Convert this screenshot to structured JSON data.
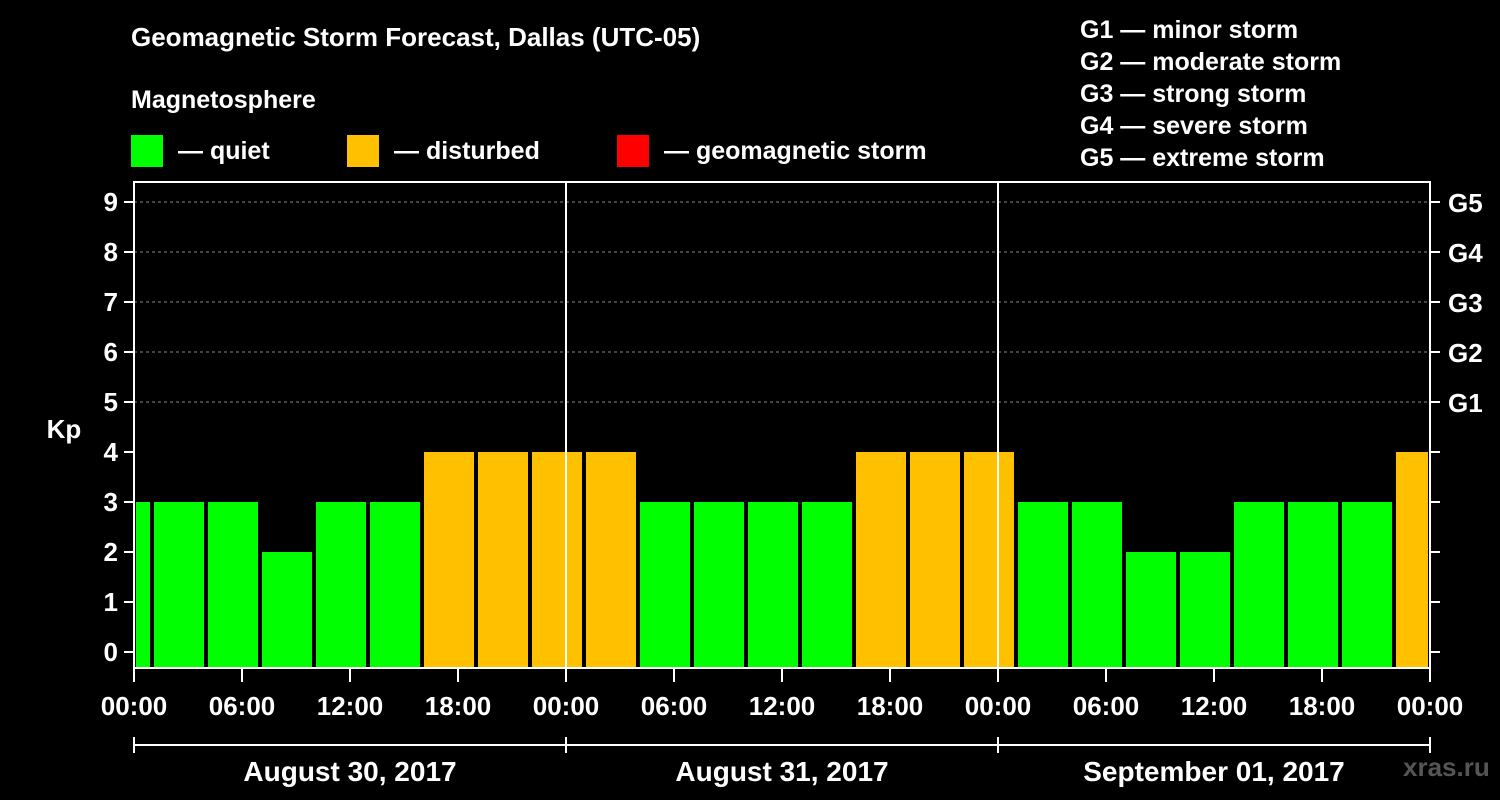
{
  "title": "Geomagnetic Storm Forecast, Dallas (UTC-05)",
  "subtitle": "Magnetosphere",
  "legend": [
    {
      "label": "— quiet",
      "color": "#00FF00"
    },
    {
      "label": "— disturbed",
      "color": "#FFC000"
    },
    {
      "label": "— geomagnetic storm",
      "color": "#FF0000"
    }
  ],
  "storm_scale": [
    "G1 — minor storm",
    "G2 — moderate storm",
    "G3 — strong storm",
    "G4 — severe storm",
    "G5 — extreme storm"
  ],
  "watermark": "xras.ru",
  "chart_data": {
    "type": "bar",
    "ylabel": "Kp",
    "ylim": [
      0,
      9
    ],
    "yticks": [
      "0",
      "1",
      "2",
      "3",
      "4",
      "5",
      "6",
      "7",
      "8",
      "9"
    ],
    "right_labels": [
      {
        "kp": 5,
        "label": "G1"
      },
      {
        "kp": 6,
        "label": "G2"
      },
      {
        "kp": 7,
        "label": "G3"
      },
      {
        "kp": 8,
        "label": "G4"
      },
      {
        "kp": 9,
        "label": "G5"
      }
    ],
    "gridlines": "dashed at Kp 5–9",
    "time_range_hours": 72,
    "x_tick_labels": [
      "00:00",
      "06:00",
      "12:00",
      "18:00",
      "00:00",
      "06:00",
      "12:00",
      "18:00",
      "00:00",
      "06:00",
      "12:00",
      "18:00",
      "00:00"
    ],
    "days": [
      "August 30, 2017",
      "August 31, 2017",
      "September 01, 2017"
    ],
    "day_boundaries_hours": [
      24,
      48
    ],
    "bars": [
      {
        "start_h": 0,
        "end_h": 1,
        "kp": 3,
        "status": "quiet"
      },
      {
        "start_h": 1,
        "end_h": 4,
        "kp": 3,
        "status": "quiet"
      },
      {
        "start_h": 4,
        "end_h": 7,
        "kp": 3,
        "status": "quiet"
      },
      {
        "start_h": 7,
        "end_h": 10,
        "kp": 2,
        "status": "quiet"
      },
      {
        "start_h": 10,
        "end_h": 13,
        "kp": 3,
        "status": "quiet"
      },
      {
        "start_h": 13,
        "end_h": 16,
        "kp": 3,
        "status": "quiet"
      },
      {
        "start_h": 16,
        "end_h": 19,
        "kp": 4,
        "status": "disturbed"
      },
      {
        "start_h": 19,
        "end_h": 22,
        "kp": 4,
        "status": "disturbed"
      },
      {
        "start_h": 22,
        "end_h": 25,
        "kp": 4,
        "status": "disturbed"
      },
      {
        "start_h": 25,
        "end_h": 28,
        "kp": 4,
        "status": "disturbed"
      },
      {
        "start_h": 28,
        "end_h": 31,
        "kp": 3,
        "status": "quiet"
      },
      {
        "start_h": 31,
        "end_h": 34,
        "kp": 3,
        "status": "quiet"
      },
      {
        "start_h": 34,
        "end_h": 37,
        "kp": 3,
        "status": "quiet"
      },
      {
        "start_h": 37,
        "end_h": 40,
        "kp": 3,
        "status": "quiet"
      },
      {
        "start_h": 40,
        "end_h": 43,
        "kp": 4,
        "status": "disturbed"
      },
      {
        "start_h": 43,
        "end_h": 46,
        "kp": 4,
        "status": "disturbed"
      },
      {
        "start_h": 46,
        "end_h": 49,
        "kp": 4,
        "status": "disturbed"
      },
      {
        "start_h": 49,
        "end_h": 52,
        "kp": 3,
        "status": "quiet"
      },
      {
        "start_h": 52,
        "end_h": 55,
        "kp": 3,
        "status": "quiet"
      },
      {
        "start_h": 55,
        "end_h": 58,
        "kp": 2,
        "status": "quiet"
      },
      {
        "start_h": 58,
        "end_h": 61,
        "kp": 2,
        "status": "quiet"
      },
      {
        "start_h": 61,
        "end_h": 64,
        "kp": 3,
        "status": "quiet"
      },
      {
        "start_h": 64,
        "end_h": 67,
        "kp": 3,
        "status": "quiet"
      },
      {
        "start_h": 67,
        "end_h": 70,
        "kp": 3,
        "status": "quiet"
      },
      {
        "start_h": 70,
        "end_h": 72,
        "kp": 4,
        "status": "disturbed"
      }
    ],
    "status_colors": {
      "quiet": "#00FF00",
      "disturbed": "#FFC000",
      "storm": "#FF0000"
    }
  }
}
